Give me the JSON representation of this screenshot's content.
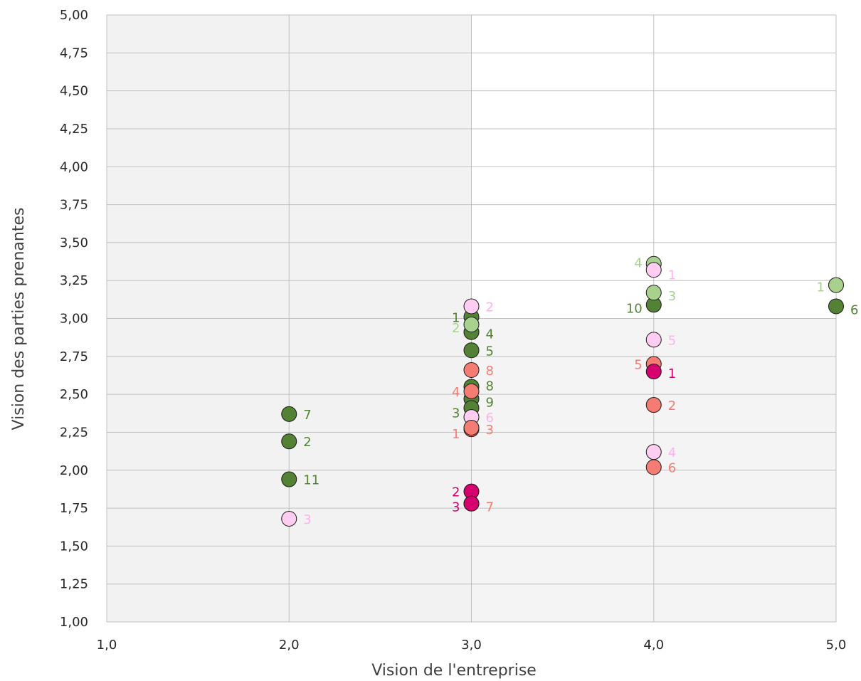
{
  "chart_data": {
    "type": "scatter",
    "title": "",
    "xlabel": "Vision de l'entreprise",
    "ylabel": "Vision des parties prenantes",
    "xlim": [
      1.0,
      5.0
    ],
    "ylim": [
      1.0,
      5.0
    ],
    "x_ticks": [
      "1,0",
      "2,0",
      "3,0",
      "4,0",
      "5,0"
    ],
    "y_ticks": [
      "1,00",
      "1,25",
      "1,50",
      "1,75",
      "2,00",
      "2,25",
      "2,50",
      "2,75",
      "3,00",
      "3,25",
      "3,50",
      "3,75",
      "4,00",
      "4,25",
      "4,50",
      "4,75",
      "5,00"
    ],
    "grid": true,
    "legend": "none",
    "colors": {
      "dark_green": "#548235",
      "light_green": "#a9d18e",
      "light_pink": "#ffccf2",
      "salmon": "#f47c72",
      "magenta": "#d6006f",
      "grid": "#c0c0c0",
      "plot_bg_grey": "#f3f3f3"
    },
    "series": [
      {
        "color": "dark_green",
        "points": [
          {
            "x": 2.0,
            "y": 2.37,
            "label": "7"
          },
          {
            "x": 2.0,
            "y": 2.19,
            "label": "2"
          },
          {
            "x": 2.0,
            "y": 1.94,
            "label": "11"
          },
          {
            "x": 3.0,
            "y": 3.01,
            "label": "1"
          },
          {
            "x": 3.0,
            "y": 2.91,
            "label": "4"
          },
          {
            "x": 3.0,
            "y": 2.79,
            "label": "5"
          },
          {
            "x": 3.0,
            "y": 2.55,
            "label": "8"
          },
          {
            "x": 3.0,
            "y": 2.47,
            "label": "9"
          },
          {
            "x": 3.0,
            "y": 2.41,
            "label": "3"
          },
          {
            "x": 4.0,
            "y": 3.09,
            "label": "10"
          },
          {
            "x": 5.0,
            "y": 3.08,
            "label": "6"
          }
        ]
      },
      {
        "color": "light_green",
        "points": [
          {
            "x": 3.0,
            "y": 2.96,
            "label": "2"
          },
          {
            "x": 4.0,
            "y": 3.36,
            "label": "4"
          },
          {
            "x": 4.0,
            "y": 3.17,
            "label": "3"
          },
          {
            "x": 5.0,
            "y": 3.22,
            "label": "1"
          }
        ]
      },
      {
        "color": "light_pink",
        "points": [
          {
            "x": 2.0,
            "y": 1.68,
            "label": "3"
          },
          {
            "x": 3.0,
            "y": 3.08,
            "label": "2"
          },
          {
            "x": 3.0,
            "y": 2.35,
            "label": "6"
          },
          {
            "x": 4.0,
            "y": 3.32,
            "label": "1"
          },
          {
            "x": 4.0,
            "y": 2.86,
            "label": "5"
          },
          {
            "x": 4.0,
            "y": 2.12,
            "label": "4"
          }
        ]
      },
      {
        "color": "salmon",
        "points": [
          {
            "x": 3.0,
            "y": 2.66,
            "label": "8"
          },
          {
            "x": 3.0,
            "y": 2.52,
            "label": "4"
          },
          {
            "x": 3.0,
            "y": 2.27,
            "label": "1"
          },
          {
            "x": 3.0,
            "y": 2.28,
            "label": "3"
          },
          {
            "x": 3.0,
            "y": 1.78,
            "label": "7"
          },
          {
            "x": 4.0,
            "y": 2.7,
            "label": "5"
          },
          {
            "x": 4.0,
            "y": 2.43,
            "label": "2"
          },
          {
            "x": 4.0,
            "y": 2.02,
            "label": "6"
          }
        ]
      },
      {
        "color": "magenta",
        "points": [
          {
            "x": 3.0,
            "y": 1.86,
            "label": "2"
          },
          {
            "x": 3.0,
            "y": 1.78,
            "label": "3"
          },
          {
            "x": 4.0,
            "y": 2.65,
            "label": "1"
          }
        ]
      }
    ]
  }
}
